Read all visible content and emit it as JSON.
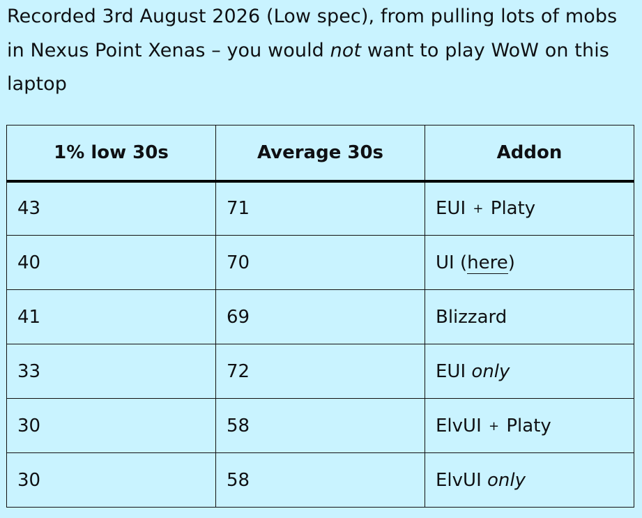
{
  "caption": {
    "before": "Recorded 3rd August 2026 (Low spec), from pulling lots of mobs in Nexus Point Xenas – you would ",
    "emphasis": "not",
    "after": " want to play WoW on this laptop"
  },
  "table": {
    "headers": [
      "1% low 30s",
      "Average 30s",
      "Addon"
    ],
    "rows": [
      {
        "low": "43",
        "avg": "71",
        "addon": {
          "name": "EUI",
          "join": "+",
          "suffix": "Platy"
        }
      },
      {
        "low": "40",
        "avg": "70",
        "addon": {
          "name": "UI (",
          "link": "here",
          "close": ")"
        }
      },
      {
        "low": "41",
        "avg": "69",
        "addon": {
          "name": "Blizzard"
        }
      },
      {
        "low": "33",
        "avg": "72",
        "addon": {
          "name": "EUI",
          "only": "only"
        }
      },
      {
        "low": "30",
        "avg": "58",
        "addon": {
          "name": "ElvUI",
          "join": "+",
          "suffix": "Platy"
        }
      },
      {
        "low": "30",
        "avg": "58",
        "addon": {
          "name": "ElvUI",
          "only": "only"
        }
      }
    ]
  }
}
